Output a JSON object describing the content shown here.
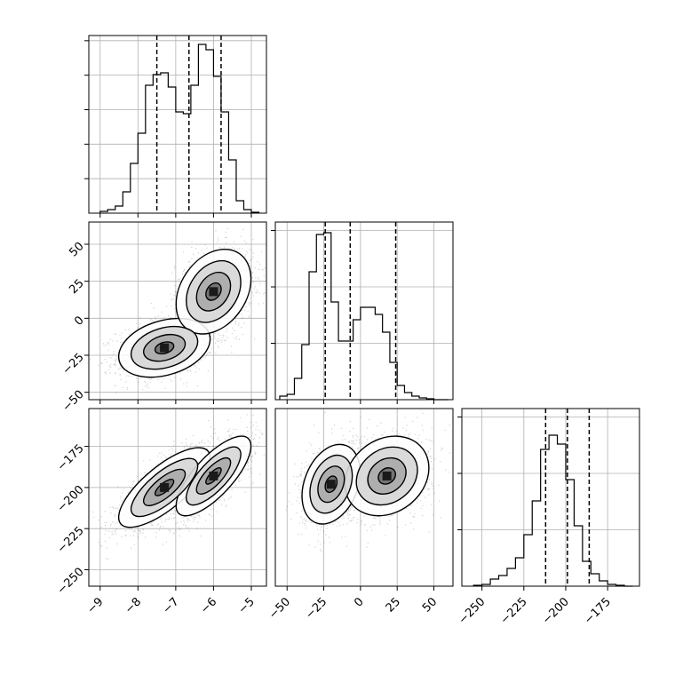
{
  "chart_data": [
    {
      "type": "histogram",
      "panel": "param1",
      "xlim": [
        -9.3,
        -4.6
      ],
      "ylim": [
        0,
        1.0
      ],
      "bin_edges": [
        -9.0,
        -8.8,
        -8.6,
        -8.4,
        -8.2,
        -8.0,
        -7.8,
        -7.6,
        -7.4,
        -7.2,
        -7.0,
        -6.8,
        -6.6,
        -6.4,
        -6.2,
        -6.0,
        -5.8,
        -5.6,
        -5.4,
        -5.2,
        -5.0,
        -4.8
      ],
      "counts": [
        0.01,
        0.02,
        0.04,
        0.12,
        0.28,
        0.45,
        0.72,
        0.78,
        0.79,
        0.71,
        0.57,
        0.56,
        0.72,
        0.95,
        0.92,
        0.77,
        0.57,
        0.3,
        0.07,
        0.02,
        0.005
      ],
      "quantiles": [
        -7.5,
        -6.65,
        -5.8
      ],
      "x_ticks": [
        -9,
        -8,
        -7,
        -6,
        -5
      ],
      "x_tick_labels": [],
      "y_tick_count": 5
    },
    {
      "type": "histogram",
      "panel": "param2",
      "xlim": [
        -58,
        63
      ],
      "ylim": [
        0,
        1.0
      ],
      "bin_edges": [
        -55,
        -50,
        -45,
        -40,
        -35,
        -30,
        -25,
        -20,
        -15,
        -10,
        -5,
        0,
        5,
        10,
        15,
        20,
        25,
        30,
        35,
        40,
        45,
        50,
        55,
        60
      ],
      "counts": [
        0.02,
        0.03,
        0.12,
        0.31,
        0.72,
        0.93,
        0.94,
        0.55,
        0.33,
        0.33,
        0.45,
        0.52,
        0.52,
        0.48,
        0.38,
        0.21,
        0.08,
        0.04,
        0.02,
        0.01,
        0.005,
        0.0,
        0.0
      ],
      "quantiles": [
        -24,
        -7,
        24
      ],
      "x_ticks": [
        -50,
        -25,
        0,
        25,
        50
      ],
      "x_tick_labels": [],
      "y_tick_count": 3
    },
    {
      "type": "histogram",
      "panel": "param3",
      "xlim": [
        -262,
        -156
      ],
      "ylim": [
        0,
        1.0
      ],
      "bin_edges": [
        -255,
        -250,
        -245,
        -240,
        -235,
        -230,
        -225,
        -220,
        -215,
        -210,
        -205,
        -200,
        -195,
        -190,
        -185,
        -180,
        -175,
        -170,
        -165,
        -160
      ],
      "counts": [
        0.005,
        0.01,
        0.04,
        0.06,
        0.1,
        0.16,
        0.29,
        0.48,
        0.77,
        0.85,
        0.8,
        0.6,
        0.34,
        0.14,
        0.07,
        0.03,
        0.01,
        0.005,
        0.0
      ],
      "quantiles": [
        -212,
        -199,
        -186
      ],
      "x_ticks": [
        -250,
        -225,
        -200,
        -175
      ],
      "x_tick_labels": [
        "−250",
        "−225",
        "−200",
        "−175"
      ],
      "y_tick_count": 3
    },
    {
      "type": "scatter_density",
      "panel": "param1_vs_param2",
      "xlim": [
        -9.3,
        -4.6
      ],
      "ylim": [
        -55,
        65
      ],
      "clusters": [
        {
          "cx": -7.3,
          "cy": -20,
          "sx": 0.55,
          "sy": 9,
          "rho": 0.3,
          "weight": 0.5
        },
        {
          "cx": -6.0,
          "cy": 18,
          "sx": 0.45,
          "sy": 13,
          "rho": 0.3,
          "weight": 0.5
        }
      ],
      "x_ticks": [
        -9,
        -8,
        -7,
        -6,
        -5
      ],
      "x_tick_labels": [],
      "y_ticks": [
        -50,
        -25,
        0,
        25,
        50
      ],
      "y_tick_labels": [
        "−50",
        "−25",
        "0",
        "25",
        "50"
      ]
    },
    {
      "type": "scatter_density",
      "panel": "param1_vs_param3",
      "xlim": [
        -9.3,
        -4.6
      ],
      "ylim": [
        -260,
        -152
      ],
      "clusters": [
        {
          "cx": -7.3,
          "cy": -200,
          "sx": 0.55,
          "sy": 11,
          "rho": 0.75,
          "weight": 0.5
        },
        {
          "cx": -6.0,
          "cy": -193,
          "sx": 0.45,
          "sy": 11,
          "rho": 0.75,
          "weight": 0.5
        }
      ],
      "x_ticks": [
        -9,
        -8,
        -7,
        -6,
        -5
      ],
      "x_tick_labels": [
        "−9",
        "−8",
        "−7",
        "−6",
        "−5"
      ],
      "y_ticks": [
        -250,
        -225,
        -200,
        -175
      ],
      "y_tick_labels": [
        "−250",
        "−225",
        "−200",
        "−175"
      ]
    },
    {
      "type": "scatter_density",
      "panel": "param2_vs_param3",
      "xlim": [
        -58,
        63
      ],
      "ylim": [
        -260,
        -152
      ],
      "clusters": [
        {
          "cx": -20,
          "cy": -198,
          "sx": 9,
          "sy": 11,
          "rho": 0.3,
          "weight": 0.5
        },
        {
          "cx": 18,
          "cy": -193,
          "sx": 13,
          "sy": 11,
          "rho": 0.2,
          "weight": 0.5
        }
      ],
      "x_ticks": [
        -50,
        -25,
        0,
        25,
        50
      ],
      "x_tick_labels": [
        "−50",
        "−25",
        "0",
        "25",
        "50"
      ],
      "y_ticks": [],
      "y_tick_labels": []
    }
  ]
}
